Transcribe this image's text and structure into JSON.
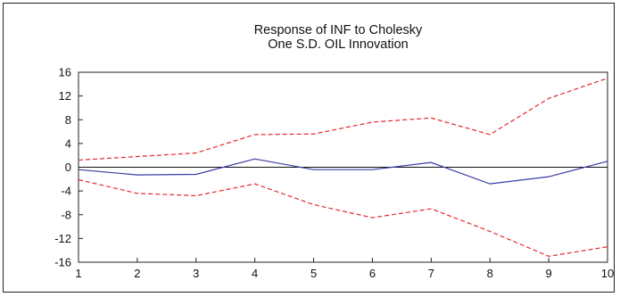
{
  "chart_data": {
    "type": "line",
    "title_lines": [
      "Response of INF to Cholesky",
      "One S.D. OIL Innovation"
    ],
    "x": [
      1,
      2,
      3,
      4,
      5,
      6,
      7,
      8,
      9,
      10
    ],
    "x_ticks": [
      "1",
      "2",
      "3",
      "4",
      "5",
      "6",
      "7",
      "8",
      "9",
      "10"
    ],
    "y_ticks": [
      "16",
      "12",
      "8",
      "4",
      "0",
      "-4",
      "-8",
      "-12",
      "-16"
    ],
    "y_tick_values": [
      16,
      12,
      8,
      4,
      0,
      -4,
      -8,
      -12,
      -16
    ],
    "ylim": [
      -16,
      16
    ],
    "xlim": [
      1,
      10
    ],
    "grid": false,
    "zero_line": true,
    "series": [
      {
        "values": [
          1.2,
          1.8,
          2.4,
          5.5,
          5.6,
          7.6,
          8.3,
          5.5,
          11.6,
          15.0
        ],
        "color": "#e8262a",
        "style": "dashed"
      },
      {
        "values": [
          -0.4,
          -1.3,
          -1.2,
          1.4,
          -0.4,
          -0.4,
          0.8,
          -2.8,
          -1.6,
          1.0
        ],
        "color": "#3a3aa8",
        "style": "solid"
      },
      {
        "values": [
          -2.1,
          -4.4,
          -4.8,
          -2.8,
          -6.3,
          -8.5,
          -7.0,
          -10.8,
          -15.0,
          -13.4
        ],
        "color": "#e8262a",
        "style": "dashed"
      }
    ]
  }
}
